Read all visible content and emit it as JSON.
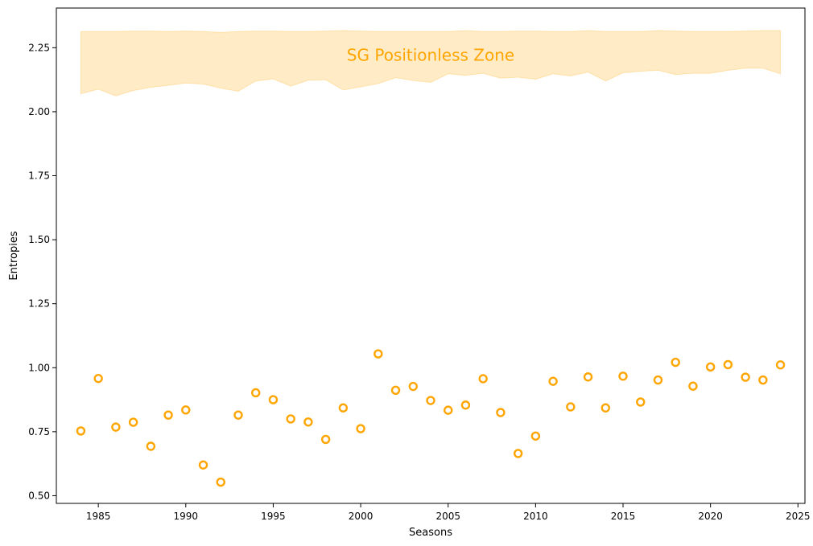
{
  "chart_data": {
    "type": "scatter",
    "title": "",
    "xlabel": "Seasons",
    "ylabel": "Entropies",
    "xlim": [
      1982.6,
      2025.4
    ],
    "ylim": [
      0.47,
      2.405
    ],
    "x_ticks": [
      1985,
      1990,
      1995,
      2000,
      2005,
      2010,
      2015,
      2020,
      2025
    ],
    "y_ticks": [
      "0.50",
      "0.75",
      "1.00",
      "1.25",
      "1.50",
      "1.75",
      "2.00",
      "2.25"
    ],
    "grid": false,
    "marker": "hollow-circle",
    "point_color": "#ffa500",
    "x": [
      1984,
      1985,
      1986,
      1987,
      1988,
      1989,
      1990,
      1991,
      1992,
      1993,
      1994,
      1995,
      1996,
      1997,
      1998,
      1999,
      2000,
      2001,
      2002,
      2003,
      2004,
      2005,
      2006,
      2007,
      2008,
      2009,
      2010,
      2011,
      2012,
      2013,
      2014,
      2015,
      2016,
      2017,
      2018,
      2019,
      2020,
      2021,
      2022,
      2023,
      2024
    ],
    "y": [
      0.753,
      0.958,
      0.768,
      0.787,
      0.693,
      0.815,
      0.835,
      0.62,
      0.553,
      0.815,
      0.902,
      0.875,
      0.8,
      0.788,
      0.72,
      0.843,
      0.762,
      1.054,
      0.912,
      0.927,
      0.872,
      0.834,
      0.854,
      0.957,
      0.825,
      0.665,
      0.733,
      0.947,
      0.847,
      0.964,
      0.843,
      0.967,
      0.866,
      0.952,
      1.021,
      0.928,
      1.003,
      1.012,
      0.963,
      0.952,
      1.011
    ],
    "zone": {
      "label": "SG Positionless Zone",
      "color": "#ffa500",
      "fill": "#ffecc7",
      "x": [
        1984,
        1985,
        1986,
        1987,
        1988,
        1989,
        1990,
        1991,
        1992,
        1993,
        1994,
        1995,
        1996,
        1997,
        1998,
        1999,
        2000,
        2001,
        2002,
        2003,
        2004,
        2005,
        2006,
        2007,
        2008,
        2009,
        2010,
        2011,
        2012,
        2013,
        2014,
        2015,
        2016,
        2017,
        2018,
        2019,
        2020,
        2021,
        2022,
        2023,
        2024
      ],
      "lower": [
        2.07,
        2.088,
        2.062,
        2.083,
        2.095,
        2.103,
        2.112,
        2.108,
        2.092,
        2.08,
        2.12,
        2.128,
        2.1,
        2.123,
        2.125,
        2.085,
        2.097,
        2.11,
        2.133,
        2.122,
        2.115,
        2.148,
        2.142,
        2.15,
        2.131,
        2.135,
        2.127,
        2.148,
        2.14,
        2.155,
        2.12,
        2.152,
        2.158,
        2.162,
        2.145,
        2.15,
        2.15,
        2.162,
        2.17,
        2.17,
        2.148
      ],
      "upper": [
        2.313,
        2.313,
        2.313,
        2.315,
        2.315,
        2.313,
        2.315,
        2.313,
        2.31,
        2.313,
        2.315,
        2.315,
        2.313,
        2.313,
        2.315,
        2.317,
        2.315,
        2.313,
        2.313,
        2.313,
        2.313,
        2.313,
        2.317,
        2.313,
        2.313,
        2.315,
        2.315,
        2.313,
        2.313,
        2.317,
        2.313,
        2.313,
        2.313,
        2.317,
        2.315,
        2.313,
        2.313,
        2.313,
        2.315,
        2.317,
        2.317
      ]
    }
  }
}
